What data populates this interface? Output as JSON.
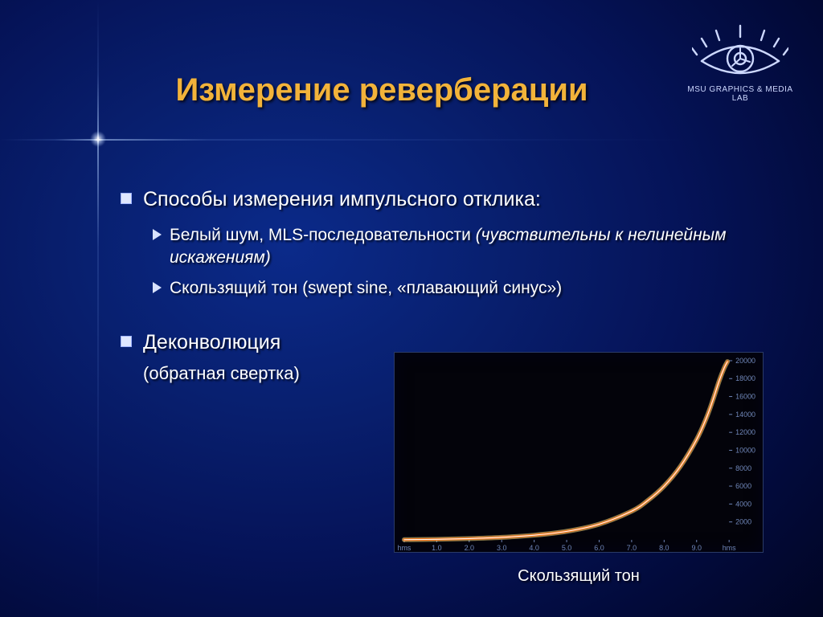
{
  "title": "Измерение реверберации",
  "logo": {
    "caption": "MSU GRAPHICS & MEDIA LAB",
    "stroke_color": "#cdd8ff"
  },
  "bullets": {
    "item1": {
      "text": "Способы измерения импульсного отклика:",
      "sub1_plain": "Белый шум, MLS-последовательности ",
      "sub1_italic": "(чувствительны к нелинейным искажениям)",
      "sub2": "Скользящий тон (swept sine, «плавающий синус»)"
    },
    "item2": {
      "text": "Деконволюция",
      "sub": "(обратная свертка)"
    }
  },
  "chart": {
    "type": "line",
    "caption": "Скользящий тон",
    "background_color": "#03030a",
    "border_color": "#2a3a66",
    "plot": {
      "xlim": [
        0,
        10
      ],
      "ylim": [
        0,
        20000
      ],
      "x_ticks": [
        "hms",
        "1.0",
        "2.0",
        "3.0",
        "4.0",
        "5.0",
        "6.0",
        "7.0",
        "8.0",
        "9.0",
        "hms"
      ],
      "y_ticks": [
        2000,
        4000,
        6000,
        8000,
        10000,
        12000,
        14000,
        16000,
        18000,
        20000
      ],
      "tick_color": "#6f86b8",
      "tick_fontsize": 9,
      "curve_points": [
        [
          0.0,
          20
        ],
        [
          1.0,
          60
        ],
        [
          2.0,
          140
        ],
        [
          3.0,
          280
        ],
        [
          4.0,
          520
        ],
        [
          5.0,
          950
        ],
        [
          6.0,
          1750
        ],
        [
          7.0,
          3200
        ],
        [
          7.5,
          4400
        ],
        [
          8.0,
          6000
        ],
        [
          8.5,
          8200
        ],
        [
          9.0,
          11200
        ],
        [
          9.3,
          13600
        ],
        [
          9.5,
          15600
        ],
        [
          9.7,
          17800
        ],
        [
          9.85,
          19200
        ],
        [
          9.95,
          19900
        ]
      ],
      "curve_stroke_outer": "#f7d77a",
      "curve_stroke_mid": "#ff7a1f",
      "curve_stroke_inner": "#ffffff",
      "curve_width_outer": 6,
      "curve_width_mid": 3.2,
      "curve_width_inner": 1.1
    }
  },
  "colors": {
    "title_color": "#f2b33a",
    "bullet_square": "#dfe7ff",
    "bullet_triangle": "#d8e2ff",
    "text_color": "#ffffff"
  },
  "typography": {
    "title_fontsize": 40,
    "lvl1_fontsize": 25,
    "lvl2_fontsize": 21,
    "caption_fontsize": 20
  }
}
